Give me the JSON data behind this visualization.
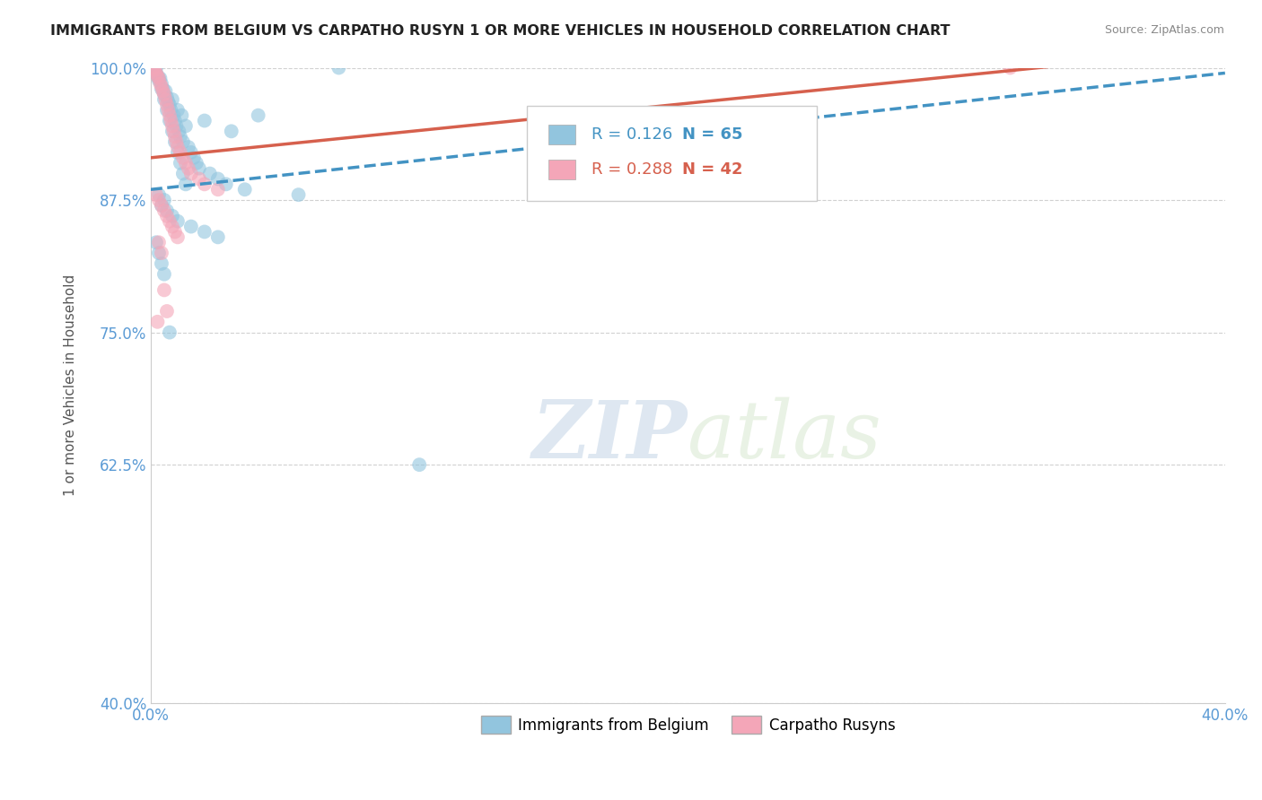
{
  "title": "IMMIGRANTS FROM BELGIUM VS CARPATHO RUSYN 1 OR MORE VEHICLES IN HOUSEHOLD CORRELATION CHART",
  "source": "Source: ZipAtlas.com",
  "ylabel": "1 or more Vehicles in Household",
  "xlim": [
    0.0,
    40.0
  ],
  "ylim": [
    40.0,
    100.0
  ],
  "legend_blue_R": "0.126",
  "legend_blue_N": "65",
  "legend_pink_R": "0.288",
  "legend_pink_N": "42",
  "legend_blue_label": "Immigrants from Belgium",
  "legend_pink_label": "Carpatho Rusyns",
  "blue_color": "#92c5de",
  "pink_color": "#f4a6b8",
  "blue_line_color": "#4393c3",
  "pink_line_color": "#d6604d",
  "blue_line_x0": 0.0,
  "blue_line_y0": 88.5,
  "blue_line_x1": 40.0,
  "blue_line_y1": 99.5,
  "pink_line_x0": 0.0,
  "pink_line_y0": 91.5,
  "pink_line_x1": 35.0,
  "pink_line_y1": 100.5,
  "blue_scatter_x": [
    0.15,
    0.2,
    0.25,
    0.3,
    0.35,
    0.4,
    0.45,
    0.5,
    0.55,
    0.6,
    0.65,
    0.7,
    0.75,
    0.8,
    0.85,
    0.9,
    0.95,
    1.0,
    1.05,
    1.1,
    1.15,
    1.2,
    1.3,
    1.4,
    1.5,
    1.6,
    1.7,
    1.8,
    2.0,
    2.2,
    2.5,
    2.8,
    3.0,
    3.5,
    4.0,
    5.5,
    7.0,
    10.0,
    0.1,
    0.2,
    0.3,
    0.4,
    0.5,
    0.6,
    0.7,
    0.8,
    0.9,
    1.0,
    1.1,
    1.2,
    1.3,
    0.3,
    0.5,
    0.4,
    0.6,
    0.8,
    1.0,
    1.5,
    2.0,
    2.5,
    0.2,
    0.3,
    0.4,
    0.5,
    0.7
  ],
  "blue_scatter_y": [
    99.8,
    99.5,
    99.2,
    98.8,
    99.0,
    98.5,
    98.0,
    97.5,
    97.8,
    97.2,
    96.8,
    96.5,
    96.0,
    97.0,
    95.5,
    95.0,
    94.5,
    96.0,
    94.0,
    93.5,
    95.5,
    93.0,
    94.5,
    92.5,
    92.0,
    91.5,
    91.0,
    90.5,
    95.0,
    90.0,
    89.5,
    89.0,
    94.0,
    88.5,
    95.5,
    88.0,
    100.0,
    62.5,
    100.0,
    100.0,
    99.0,
    98.0,
    97.0,
    96.0,
    95.0,
    94.0,
    93.0,
    92.0,
    91.0,
    90.0,
    89.0,
    88.0,
    87.5,
    87.0,
    86.5,
    86.0,
    85.5,
    85.0,
    84.5,
    84.0,
    83.5,
    82.5,
    81.5,
    80.5,
    75.0
  ],
  "pink_scatter_x": [
    0.1,
    0.15,
    0.2,
    0.25,
    0.3,
    0.35,
    0.4,
    0.45,
    0.5,
    0.55,
    0.6,
    0.65,
    0.7,
    0.75,
    0.8,
    0.85,
    0.9,
    0.95,
    1.0,
    1.1,
    1.2,
    1.3,
    1.4,
    1.5,
    1.8,
    2.0,
    2.5,
    0.2,
    0.3,
    0.4,
    0.5,
    0.6,
    0.7,
    0.8,
    0.9,
    1.0,
    0.3,
    0.4,
    0.5,
    0.6,
    0.25,
    32.0
  ],
  "pink_scatter_y": [
    100.0,
    99.8,
    99.5,
    99.2,
    99.0,
    98.5,
    98.2,
    97.8,
    97.5,
    97.0,
    96.5,
    96.0,
    95.5,
    95.0,
    94.5,
    94.0,
    93.5,
    93.0,
    92.5,
    92.0,
    91.5,
    91.0,
    90.5,
    90.0,
    89.5,
    89.0,
    88.5,
    88.0,
    87.5,
    87.0,
    86.5,
    86.0,
    85.5,
    85.0,
    84.5,
    84.0,
    83.5,
    82.5,
    79.0,
    77.0,
    76.0,
    100.0
  ],
  "watermark_zip": "ZIP",
  "watermark_atlas": "atlas",
  "background_color": "#ffffff",
  "grid_color": "#cccccc",
  "tick_color": "#5b9bd5",
  "title_color": "#222222",
  "source_color": "#888888"
}
